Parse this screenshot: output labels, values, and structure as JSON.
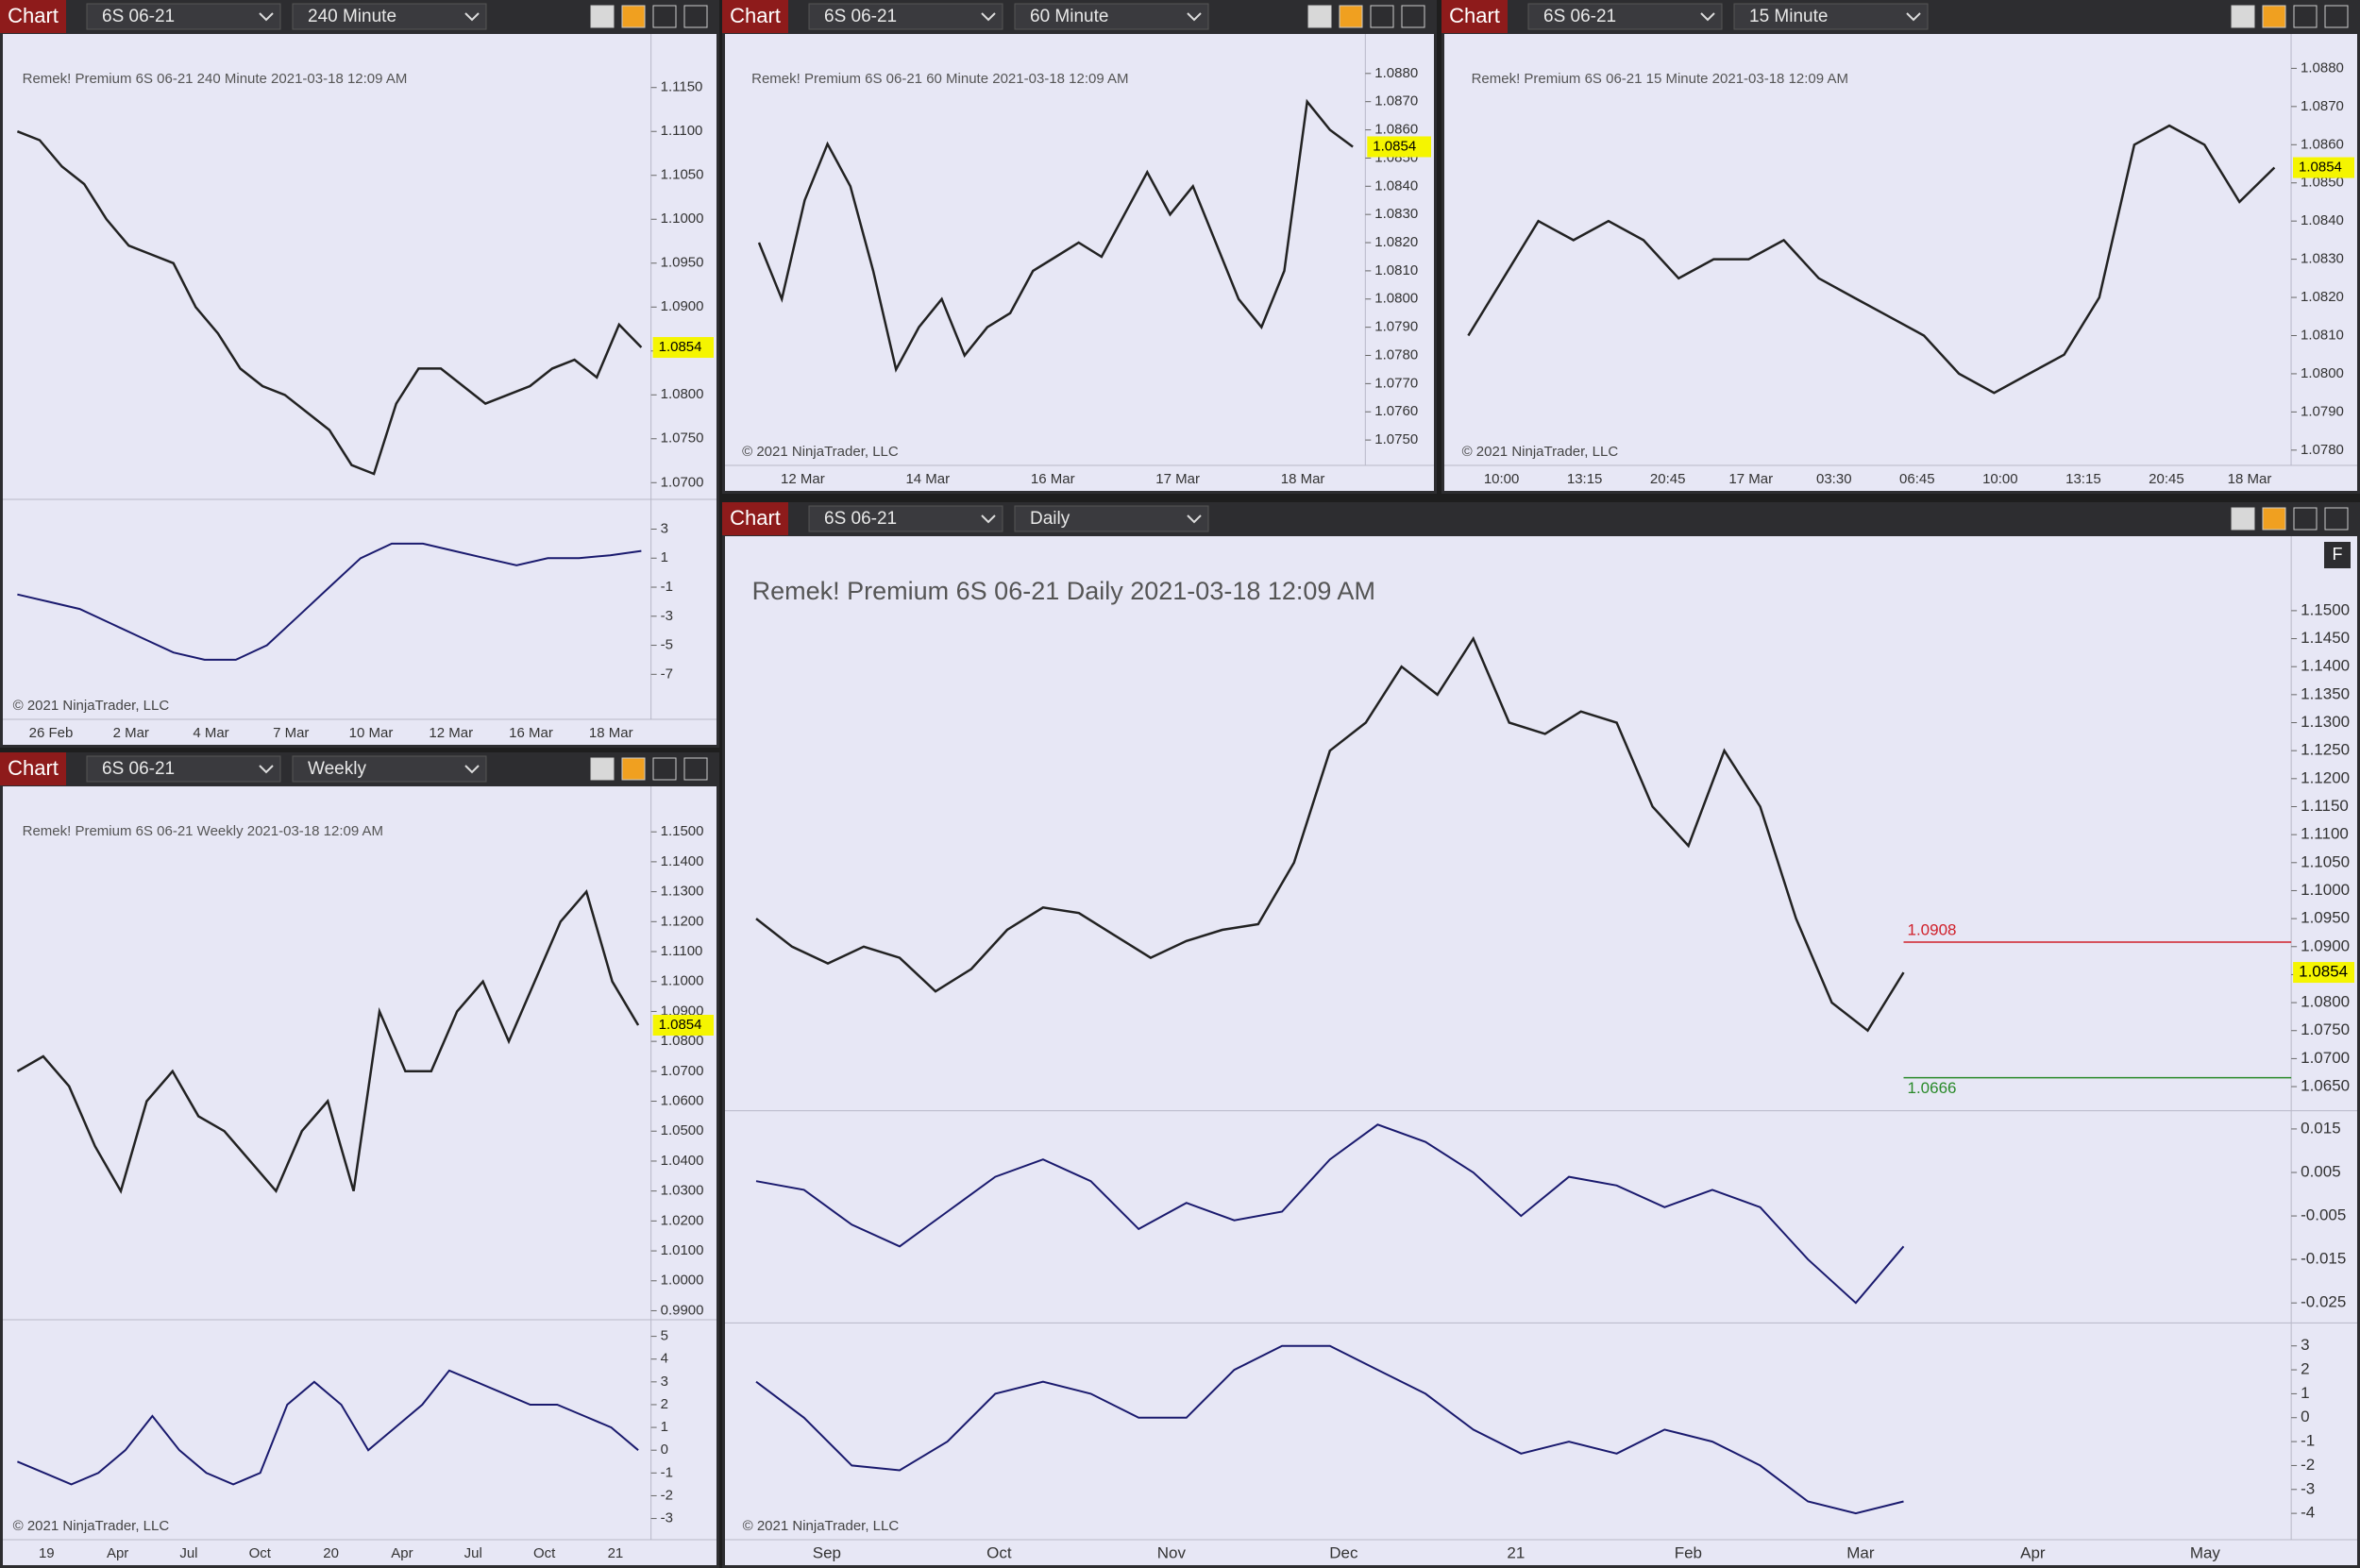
{
  "windows": [
    {
      "title": "Chart",
      "instrument": "6S 06-21",
      "interval": "240 Minute"
    },
    {
      "title": "Chart",
      "instrument": "6S 06-21",
      "interval": "60 Minute"
    },
    {
      "title": "Chart",
      "instrument": "6S 06-21",
      "interval": "15 Minute"
    },
    {
      "title": "Chart",
      "instrument": "6S 06-21",
      "interval": "Weekly"
    },
    {
      "title": "Chart",
      "instrument": "6S 06-21",
      "interval": "Daily",
      "side_button": "F"
    }
  ],
  "chart_data": [
    {
      "type": "line",
      "title": "Remek!  Premium  6S 06-21  240 Minute  2021-03-18 12:09 AM",
      "watermark": "© 2021 NinjaTrader, LLC",
      "xticks": [
        "26 Feb",
        "2 Mar",
        "4 Mar",
        "7 Mar",
        "10 Mar",
        "12 Mar",
        "16 Mar",
        "18 Mar"
      ],
      "price_label": {
        "value": 1.0854,
        "label": "1.0854"
      },
      "panes": [
        {
          "ylim": [
            1.0681,
            1.1211
          ],
          "color": "#222222",
          "yticks": [
            {
              "value": 1.115,
              "label": "1.1150"
            },
            {
              "value": 1.11,
              "label": "1.1100"
            },
            {
              "value": 1.105,
              "label": "1.1050"
            },
            {
              "value": 1.1,
              "label": "1.1000"
            },
            {
              "value": 1.095,
              "label": "1.0950"
            },
            {
              "value": 1.09,
              "label": "1.0900"
            },
            {
              "value": 1.085,
              "label": "1.0850"
            },
            {
              "value": 1.08,
              "label": "1.0800"
            },
            {
              "value": 1.075,
              "label": "1.0750"
            },
            {
              "value": 1.07,
              "label": "1.0700"
            }
          ],
          "values": [
            1.11,
            1.109,
            1.106,
            1.104,
            1.1,
            1.097,
            1.096,
            1.095,
            1.09,
            1.087,
            1.083,
            1.081,
            1.08,
            1.078,
            1.076,
            1.072,
            1.071,
            1.079,
            1.083,
            1.083,
            1.081,
            1.079,
            1.08,
            1.081,
            1.083,
            1.084,
            1.082,
            1.088,
            1.0854
          ]
        },
        {
          "ylim": [
            -10.1,
            5.05
          ],
          "color": "#1a1a6e",
          "yticks": [
            3,
            1,
            -1,
            -3,
            -5,
            -7
          ],
          "values": [
            -1.5,
            -2,
            -2.5,
            -3.5,
            -4.5,
            -5.5,
            -6,
            -6,
            -5,
            -3,
            -1,
            1,
            2,
            2,
            1.5,
            1,
            0.5,
            1,
            1,
            1.2,
            1.5
          ]
        }
      ]
    },
    {
      "type": "line",
      "title": "Remek!  Premium  6S 06-21  60 Minute  2021-03-18 12:09 AM",
      "watermark": "© 2021 NinjaTrader, LLC",
      "xticks": [
        "12 Mar",
        "14 Mar",
        "16 Mar",
        "17 Mar",
        "18 Mar"
      ],
      "price_label": {
        "value": 1.0854,
        "label": "1.0854"
      },
      "panes": [
        {
          "ylim": [
            1.0741,
            1.0894
          ],
          "color": "#222222",
          "yticks": [
            {
              "value": 1.088,
              "label": "1.0880"
            },
            {
              "value": 1.087,
              "label": "1.0870"
            },
            {
              "value": 1.086,
              "label": "1.0860"
            },
            {
              "value": 1.085,
              "label": "1.0850"
            },
            {
              "value": 1.084,
              "label": "1.0840"
            },
            {
              "value": 1.083,
              "label": "1.0830"
            },
            {
              "value": 1.082,
              "label": "1.0820"
            },
            {
              "value": 1.081,
              "label": "1.0810"
            },
            {
              "value": 1.08,
              "label": "1.0800"
            },
            {
              "value": 1.079,
              "label": "1.0790"
            },
            {
              "value": 1.078,
              "label": "1.0780"
            },
            {
              "value": 1.077,
              "label": "1.0770"
            },
            {
              "value": 1.076,
              "label": "1.0760"
            },
            {
              "value": 1.075,
              "label": "1.0750"
            }
          ],
          "values": [
            1.082,
            1.08,
            1.0835,
            1.0855,
            1.084,
            1.081,
            1.0775,
            1.079,
            1.08,
            1.078,
            1.079,
            1.0795,
            1.081,
            1.0815,
            1.082,
            1.0815,
            1.083,
            1.0845,
            1.083,
            1.084,
            1.082,
            1.08,
            1.079,
            1.081,
            1.087,
            1.086,
            1.0854
          ]
        }
      ]
    },
    {
      "type": "line",
      "title": "Remek!  Premium  6S 06-21  15 Minute  2021-03-18 12:09 AM",
      "watermark": "© 2021 NinjaTrader, LLC",
      "xticks": [
        "10:00",
        "13:15",
        "20:45",
        "17 Mar",
        "03:30",
        "06:45",
        "10:00",
        "13:15",
        "20:45",
        "18 Mar"
      ],
      "price_label": {
        "value": 1.0854,
        "label": "1.0854"
      },
      "panes": [
        {
          "ylim": [
            1.0776,
            1.0889
          ],
          "color": "#222222",
          "yticks": [
            {
              "value": 1.088,
              "label": "1.0880"
            },
            {
              "value": 1.087,
              "label": "1.0870"
            },
            {
              "value": 1.086,
              "label": "1.0860"
            },
            {
              "value": 1.085,
              "label": "1.0850"
            },
            {
              "value": 1.084,
              "label": "1.0840"
            },
            {
              "value": 1.083,
              "label": "1.0830"
            },
            {
              "value": 1.082,
              "label": "1.0820"
            },
            {
              "value": 1.081,
              "label": "1.0810"
            },
            {
              "value": 1.08,
              "label": "1.0800"
            },
            {
              "value": 1.079,
              "label": "1.0790"
            },
            {
              "value": 1.078,
              "label": "1.0780"
            }
          ],
          "values": [
            1.081,
            1.0825,
            1.084,
            1.0835,
            1.084,
            1.0835,
            1.0825,
            1.083,
            1.083,
            1.0835,
            1.0825,
            1.082,
            1.0815,
            1.081,
            1.08,
            1.0795,
            1.08,
            1.0805,
            1.082,
            1.086,
            1.0865,
            1.086,
            1.0845,
            1.0854
          ]
        }
      ]
    },
    {
      "type": "line",
      "title": "Remek!  Premium  6S 06-21  Weekly  2021-03-18 12:09 AM",
      "watermark": "© 2021 NinjaTrader, LLC",
      "xticks": [
        "19",
        "Apr",
        "Jul",
        "Oct",
        "20",
        "Apr",
        "Jul",
        "Oct",
        "21"
      ],
      "price_label": {
        "value": 1.0854,
        "label": "1.0854"
      },
      "panes": [
        {
          "ylim": [
            0.987,
            1.1652
          ],
          "color": "#222222",
          "yticks": [
            {
              "value": 1.15,
              "label": "1.1500"
            },
            {
              "value": 1.14,
              "label": "1.1400"
            },
            {
              "value": 1.13,
              "label": "1.1300"
            },
            {
              "value": 1.12,
              "label": "1.1200"
            },
            {
              "value": 1.11,
              "label": "1.1100"
            },
            {
              "value": 1.1,
              "label": "1.1000"
            },
            {
              "value": 1.09,
              "label": "1.0900"
            },
            {
              "value": 1.08,
              "label": "1.0800"
            },
            {
              "value": 1.07,
              "label": "1.0700"
            },
            {
              "value": 1.06,
              "label": "1.0600"
            },
            {
              "value": 1.05,
              "label": "1.0500"
            },
            {
              "value": 1.04,
              "label": "1.0400"
            },
            {
              "value": 1.03,
              "label": "1.0300"
            },
            {
              "value": 1.02,
              "label": "1.0200"
            },
            {
              "value": 1.01,
              "label": "1.0100"
            },
            {
              "value": 1.0,
              "label": "1.0000"
            },
            {
              "value": 0.99,
              "label": "0.9900"
            }
          ],
          "values": [
            1.07,
            1.075,
            1.065,
            1.045,
            1.03,
            1.06,
            1.07,
            1.055,
            1.05,
            1.04,
            1.03,
            1.05,
            1.06,
            1.03,
            1.09,
            1.07,
            1.07,
            1.09,
            1.1,
            1.08,
            1.1,
            1.12,
            1.13,
            1.1,
            1.0854
          ]
        },
        {
          "ylim": [
            -3.93,
            5.73
          ],
          "color": "#1a1a6e",
          "yticks": [
            5,
            4,
            3,
            2,
            1,
            0,
            -1,
            -2,
            -3
          ],
          "values": [
            -0.5,
            -1,
            -1.5,
            -1,
            0,
            1.5,
            0,
            -1,
            -1.5,
            -1,
            2,
            3,
            2,
            0,
            1,
            2,
            3.5,
            3,
            2.5,
            2,
            2,
            1.5,
            1,
            0
          ]
        }
      ]
    },
    {
      "type": "line",
      "title": "Remek!  Premium  6S 06-21  Daily  2021-03-18 12:09 AM",
      "watermark": "© 2021 NinjaTrader, LLC",
      "xticks": [
        "Sep",
        "Oct",
        "Nov",
        "Dec",
        "21",
        "Feb",
        "Mar",
        "Apr",
        "May"
      ],
      "price_label": {
        "value": 1.0854,
        "label": "1.0854"
      },
      "annotations": [
        {
          "value": 1.0908,
          "label": "1.0908",
          "color": "#d0202a"
        },
        {
          "value": 1.0666,
          "label": "1.0666",
          "color": "#2a8a2a"
        }
      ],
      "panes": [
        {
          "ylim": [
            1.0607,
            1.1633
          ],
          "color": "#222222",
          "yticks": [
            {
              "value": 1.15,
              "label": "1.1500"
            },
            {
              "value": 1.145,
              "label": "1.1450"
            },
            {
              "value": 1.14,
              "label": "1.1400"
            },
            {
              "value": 1.135,
              "label": "1.1350"
            },
            {
              "value": 1.13,
              "label": "1.1300"
            },
            {
              "value": 1.125,
              "label": "1.1250"
            },
            {
              "value": 1.12,
              "label": "1.1200"
            },
            {
              "value": 1.115,
              "label": "1.1150"
            },
            {
              "value": 1.11,
              "label": "1.1100"
            },
            {
              "value": 1.105,
              "label": "1.1050"
            },
            {
              "value": 1.1,
              "label": "1.1000"
            },
            {
              "value": 1.095,
              "label": "1.0950"
            },
            {
              "value": 1.09,
              "label": "1.0900"
            },
            {
              "value": 1.085,
              "label": "1.0850"
            },
            {
              "value": 1.08,
              "label": "1.0800"
            },
            {
              "value": 1.075,
              "label": "1.0750"
            },
            {
              "value": 1.07,
              "label": "1.0700"
            },
            {
              "value": 1.065,
              "label": "1.0650"
            }
          ],
          "values": [
            1.095,
            1.09,
            1.087,
            1.09,
            1.088,
            1.082,
            1.086,
            1.093,
            1.097,
            1.096,
            1.092,
            1.088,
            1.091,
            1.093,
            1.094,
            1.105,
            1.125,
            1.13,
            1.14,
            1.135,
            1.145,
            1.13,
            1.128,
            1.132,
            1.13,
            1.115,
            1.108,
            1.125,
            1.115,
            1.095,
            1.08,
            1.075,
            1.0854
          ]
        },
        {
          "ylim": [
            -0.0296,
            0.0192
          ],
          "color": "#1a1a6e",
          "yticks": [
            0.015,
            0.005,
            -0.005,
            -0.015,
            -0.025
          ],
          "values": [
            0.003,
            0.001,
            -0.007,
            -0.012,
            -0.004,
            0.004,
            0.008,
            0.003,
            -0.008,
            -0.002,
            -0.006,
            -0.004,
            0.008,
            0.016,
            0.012,
            0.005,
            -0.005,
            0.004,
            0.002,
            -0.003,
            0.001,
            -0.003,
            -0.015,
            -0.025,
            -0.012
          ]
        },
        {
          "ylim": [
            -5.1,
            3.96
          ],
          "color": "#1a1a6e",
          "yticks": [
            3,
            2,
            1,
            0,
            -1,
            -2,
            -3,
            -4
          ],
          "values": [
            1.5,
            0,
            -2,
            -2.2,
            -1,
            1,
            1.5,
            1,
            0,
            0,
            2,
            3,
            3,
            2,
            1,
            -0.5,
            -1.5,
            -1,
            -1.5,
            -0.5,
            -1,
            -2,
            -3.5,
            -4,
            -3.5
          ]
        }
      ]
    }
  ]
}
